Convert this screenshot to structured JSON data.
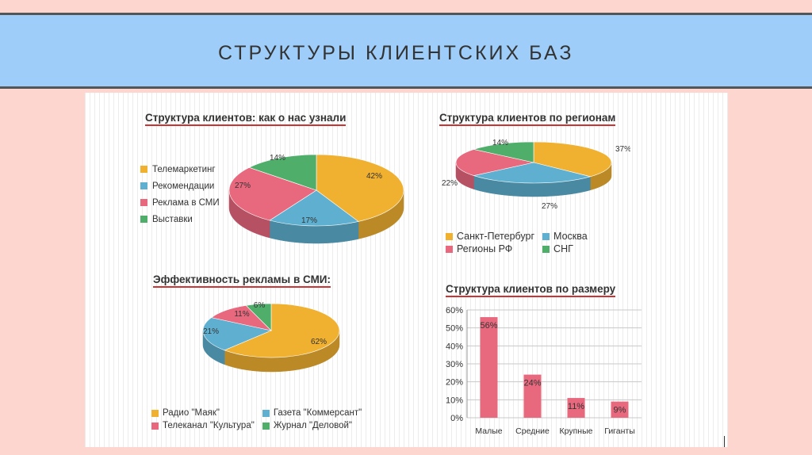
{
  "slide": {
    "title": "СТРУКТУРЫ КЛИЕНТСКИХ БАЗ"
  },
  "colors": {
    "orange": "#f0b030",
    "blue": "#5fb0d0",
    "pink": "#e8687e",
    "green": "#4fae6a",
    "bar": "#e8687e"
  },
  "chart_data": [
    {
      "type": "pie",
      "title": "Структура клиентов: как о нас узнали",
      "labels": [
        "Телемаркетинг",
        "Рекомендации",
        "Реклама в СМИ",
        "Выставки"
      ],
      "values": [
        42,
        17,
        27,
        14
      ],
      "value_labels": [
        "42%",
        "17%",
        "27%",
        "14%"
      ],
      "legend": "left"
    },
    {
      "type": "pie",
      "title": "Структура клиентов по регионам",
      "labels": [
        "Санкт-Петербург",
        "Москва",
        "Регионы РФ",
        "СНГ"
      ],
      "values": [
        37,
        27,
        22,
        14
      ],
      "value_labels": [
        "37%",
        "27%",
        "22%",
        "14%"
      ],
      "legend": "bottom"
    },
    {
      "type": "pie",
      "title": "Эффективность рекламы в СМИ:",
      "labels": [
        "Радио \"Маяк\"",
        "Газета \"Коммерсант\"",
        "Телеканал \"Культура\"",
        "Журнал \"Деловой\""
      ],
      "values": [
        62,
        21,
        11,
        6
      ],
      "value_labels": [
        "62%",
        "21%",
        "11%",
        "6%"
      ],
      "legend": "bottom"
    },
    {
      "type": "bar",
      "title": "Структура клиентов по размеру",
      "categories": [
        "Малые",
        "Средние",
        "Крупные",
        "Гиганты"
      ],
      "values": [
        56,
        24,
        11,
        9
      ],
      "value_labels": [
        "56%",
        "24%",
        "11%",
        "9%"
      ],
      "ylim": [
        0,
        60
      ],
      "yticks": [
        "0%",
        "10%",
        "20%",
        "30%",
        "40%",
        "50%",
        "60%"
      ],
      "grid": true
    }
  ]
}
